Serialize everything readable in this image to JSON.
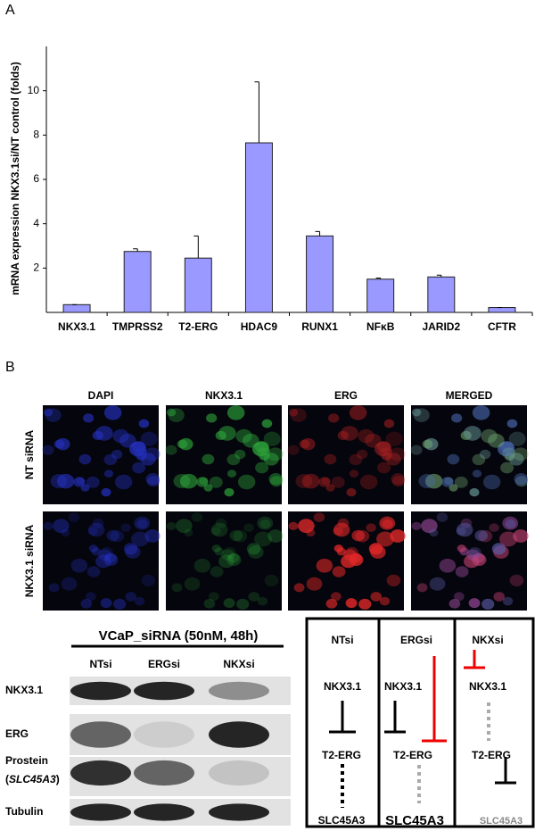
{
  "chart_data": {
    "type": "bar",
    "y_label": "mRNA expression NKX3.1si/NT control (folds)",
    "categories": [
      "NKX3.1",
      "TMPRSS2",
      "T2-ERG",
      "HDAC9",
      "RUNX1",
      "NFκB",
      "JARID2",
      "CFTR"
    ],
    "values": [
      0.35,
      2.75,
      2.45,
      7.65,
      3.45,
      1.5,
      1.6,
      0.22
    ],
    "errors": [
      0,
      0.12,
      1.0,
      2.75,
      0.2,
      0.05,
      0.08,
      0
    ],
    "color": "#9999ff",
    "ylim": [
      0,
      12
    ],
    "yticks": [
      2,
      4,
      6,
      8,
      10
    ],
    "grid": false
  },
  "panel_labels": [
    "A",
    "B"
  ],
  "microscopy": {
    "columns": [
      "DAPI",
      "NKX3.1",
      "ERG",
      "MERGED"
    ],
    "rows": [
      "NT siRNA",
      "NKX3.1 siRNA"
    ]
  },
  "blot": {
    "title": "VCaP_siRNA (50nM, 48h)",
    "lanes": [
      "NTsi",
      "ERGsi",
      "NKXsi"
    ],
    "rows": [
      "NKX3.1",
      "ERG",
      "Prostein",
      "Tubulin"
    ],
    "prostein_gene": {
      "open": "(",
      "name": "SLC45A3",
      "close": ")"
    }
  },
  "diagram": {
    "columns": [
      {
        "header": "NTsi",
        "nkx": "NKX3.1",
        "erg": "T2-ERG",
        "slc": "SLC45A3"
      },
      {
        "header": "ERGsi",
        "nkx": "NKX3.1",
        "erg": "T2-ERG",
        "slc": "SLC45A3"
      },
      {
        "header": "NKXsi",
        "nkx": "NKX3.1",
        "erg": "T2-ERG",
        "slc": "SLC45A3"
      }
    ]
  }
}
